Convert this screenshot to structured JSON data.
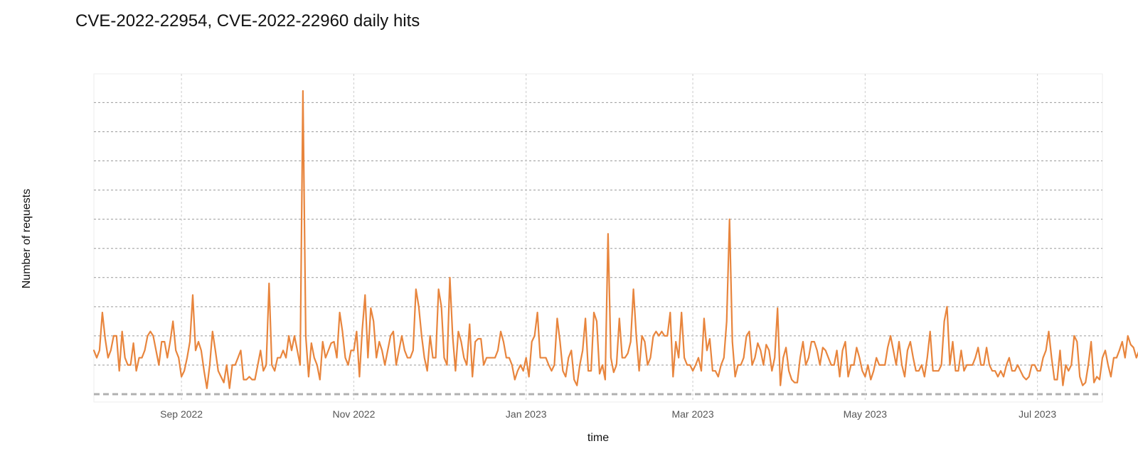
{
  "chart_data": {
    "type": "line",
    "title": "CVE-2022-22954, CVE-2022-22960 daily hits",
    "xlabel": "time",
    "ylabel": "Number of requests",
    "x_start": "2022-08-01",
    "x_end": "2023-07-24",
    "xlim": [
      "2022-08-01",
      "2023-07-24"
    ],
    "ylim": [
      0,
      21
    ],
    "y_ticks": [
      0,
      2,
      4,
      6,
      8,
      10,
      12,
      14,
      16,
      18,
      20
    ],
    "y_tick_labels_visible": false,
    "x_ticks": [
      {
        "date": "2022-09-01",
        "label": "Sep 2022"
      },
      {
        "date": "2022-11-01",
        "label": "Nov 2022"
      },
      {
        "date": "2023-01-01",
        "label": "Jan 2023"
      },
      {
        "date": "2023-03-01",
        "label": "Mar 2023"
      },
      {
        "date": "2023-05-01",
        "label": "May 2023"
      },
      {
        "date": "2023-07-01",
        "label": "Jul 2023"
      }
    ],
    "grid": true,
    "legend": "none",
    "series": [
      {
        "color": "#E8853D",
        "values": [
          3,
          2.5,
          3,
          5.6,
          3.8,
          2.5,
          3,
          4,
          4,
          1.6,
          4.3,
          2.5,
          2,
          2,
          3.5,
          1.6,
          2.5,
          2.5,
          3,
          4,
          4.3,
          4,
          3,
          2,
          3.6,
          3.6,
          2.5,
          3.6,
          5,
          3,
          2.5,
          1.2,
          1.6,
          2.5,
          3.6,
          6.8,
          3,
          3.6,
          3,
          1.6,
          0.4,
          2,
          4.3,
          3,
          1.6,
          1.2,
          0.8,
          2,
          0.4,
          2,
          2,
          2.5,
          3,
          1,
          1,
          1.2,
          1,
          1,
          2,
          3,
          1.6,
          2,
          7.6,
          2,
          1.6,
          2.5,
          2.5,
          3,
          2.5,
          4,
          3,
          4,
          3,
          2,
          20.8,
          4,
          1.2,
          3.5,
          2.5,
          2,
          1,
          3.6,
          2.5,
          3,
          3.5,
          3.6,
          2.5,
          5.6,
          4.3,
          2.5,
          2,
          3,
          3,
          4.3,
          1.2,
          4.4,
          6.8,
          2.5,
          5.9,
          5,
          2.5,
          3.6,
          3,
          2,
          3,
          4,
          4.3,
          2,
          3,
          4,
          3,
          2.5,
          2.5,
          3,
          7.2,
          6,
          4,
          2.5,
          1.6,
          4,
          2.5,
          2.5,
          7.2,
          6,
          2.5,
          2,
          8,
          4,
          1.6,
          4.3,
          3.6,
          2.5,
          2,
          4.8,
          1.2,
          3.6,
          3.8,
          3.8,
          2,
          2.5,
          2.5,
          2.5,
          2.5,
          3,
          4.3,
          3.6,
          2.5,
          2.5,
          2,
          1,
          1.6,
          2,
          1.6,
          2.5,
          1.2,
          3.6,
          4,
          5.6,
          2.5,
          2.5,
          2.5,
          2,
          1.6,
          2,
          5.2,
          3.6,
          1.6,
          1.2,
          2.5,
          3,
          1,
          0.6,
          2,
          3,
          5.2,
          1.6,
          1.6,
          5.6,
          5,
          1.4,
          2,
          1,
          11,
          2.5,
          1.5,
          2,
          5.2,
          2.5,
          2.5,
          2.8,
          3.6,
          7.2,
          4,
          1.6,
          4,
          3.6,
          2,
          2.5,
          4,
          4.3,
          4,
          4.3,
          4,
          4,
          5.6,
          1.2,
          3.6,
          2.5,
          5.6,
          2.5,
          2,
          2,
          1.6,
          2,
          2.5,
          1.6,
          5.2,
          3,
          3.8,
          1.6,
          1.6,
          1.2,
          2,
          2.5,
          5,
          12,
          3.6,
          1.2,
          2,
          2,
          2.5,
          4,
          4.3,
          2,
          2.5,
          3.5,
          3,
          2,
          3.4,
          3,
          1.6,
          2.5,
          5.9,
          0.6,
          2.5,
          3.2,
          1.6,
          1,
          0.8,
          0.8,
          2.5,
          3.6,
          2,
          2.5,
          3.6,
          3.6,
          3,
          2,
          3.2,
          3,
          2.5,
          2,
          2,
          3,
          1.2,
          3,
          3.6,
          1.2,
          2,
          2,
          3.2,
          2.5,
          1.6,
          1.2,
          2,
          1,
          1.6,
          2.5,
          2,
          2,
          2,
          3.2,
          4,
          3,
          2,
          3.6,
          2,
          1.2,
          3,
          3.6,
          2.5,
          1.6,
          1.6,
          2,
          1.2,
          2.5,
          4.3,
          1.6,
          1.6,
          1.6,
          2,
          5,
          6,
          2,
          3.6,
          1.6,
          1.6,
          3,
          1.6,
          2,
          2,
          2,
          2.5,
          3.2,
          2,
          2,
          3.2,
          2,
          1.6,
          1.6,
          1.2,
          1.6,
          1.2,
          2,
          2.5,
          1.6,
          1.6,
          2,
          1.6,
          1.2,
          1,
          1.2,
          2,
          2,
          1.6,
          1.6,
          2.5,
          3,
          4.3,
          2.5,
          1,
          1,
          3,
          0.6,
          2,
          1.6,
          2,
          4,
          3.6,
          1.2,
          0.6,
          0.8,
          2,
          3.6,
          0.8,
          1.2,
          1,
          2.5,
          3,
          2,
          1.2,
          2.5,
          2.5,
          3,
          3.6,
          2.5,
          4,
          3.4,
          3.2,
          2.5,
          3
        ]
      }
    ]
  }
}
